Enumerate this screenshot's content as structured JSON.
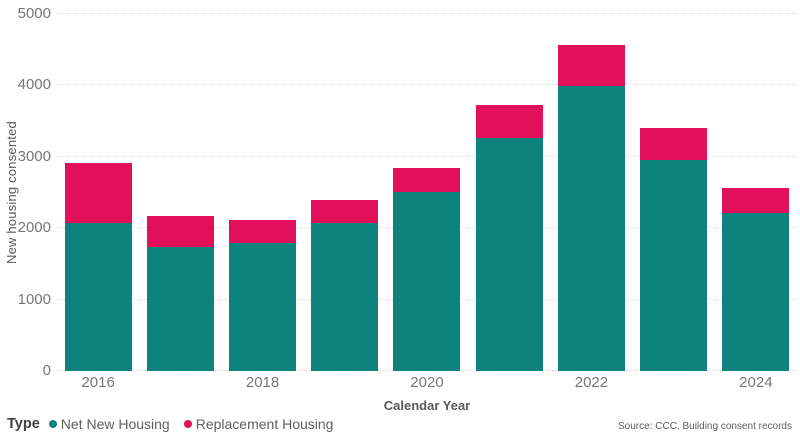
{
  "chart_data": {
    "type": "bar",
    "stacked": true,
    "title": "",
    "xlabel": "Calendar Year",
    "ylabel": "New housing consented",
    "ylim": [
      0,
      5000
    ],
    "y_ticks": [
      0,
      1000,
      2000,
      3000,
      4000,
      5000
    ],
    "grid": "horizontal-dotted",
    "categories": [
      "2016",
      "2017",
      "2018",
      "2019",
      "2020",
      "2021",
      "2022",
      "2023",
      "2024"
    ],
    "x_tick_labels": [
      "2016",
      "",
      "2018",
      "",
      "2020",
      "",
      "2022",
      "",
      "2024"
    ],
    "series": [
      {
        "name": "Net New Housing",
        "color": "#0E837E",
        "values": [
          2080,
          1740,
          1790,
          2070,
          2510,
          3260,
          3990,
          2960,
          2220
        ]
      },
      {
        "name": "Replacement Housing",
        "color": "#E2105B",
        "values": [
          840,
          430,
          320,
          320,
          340,
          470,
          570,
          450,
          340
        ]
      }
    ],
    "legend_position": "bottom-left",
    "legend_title": "Type"
  },
  "legend": {
    "title": "Type",
    "items": [
      {
        "label": "Net New Housing",
        "color": "#0E837E"
      },
      {
        "label": "Replacement Housing",
        "color": "#E2105B"
      }
    ]
  },
  "source_note": "Source: CCC, Building consent records",
  "colors": {
    "net_new_housing": "#0E837E",
    "replacement_housing": "#E2105B",
    "gridline": "#d8d8d8",
    "tick_text": "#767676",
    "axis_title_text": "#595959"
  }
}
